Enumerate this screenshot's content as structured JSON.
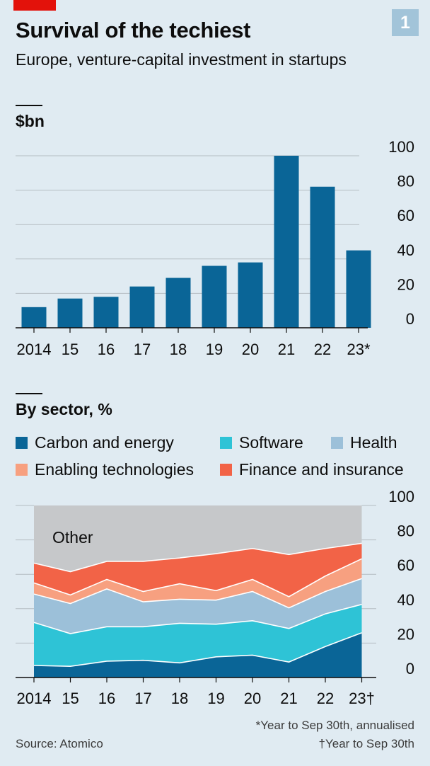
{
  "header": {
    "title": "Survival of the techiest",
    "subtitle": "Europe, venture-capital investment in startups",
    "chart_number": "1"
  },
  "colors": {
    "background": "#e0ebf2",
    "bar": "#0a6597",
    "brand_red": "#e3120b",
    "other_area": "#c6c8ca",
    "grid": "#b4bcc2"
  },
  "chart_data": [
    {
      "type": "bar",
      "ylabel": "$bn",
      "categories": [
        "2014",
        "15",
        "16",
        "17",
        "18",
        "19",
        "20",
        "21",
        "22",
        "23*"
      ],
      "values": [
        12,
        17,
        18,
        24,
        29,
        36,
        38,
        100,
        82,
        45
      ],
      "ylim": [
        0,
        100
      ],
      "yticks": [
        "0",
        "20",
        "40",
        "60",
        "80",
        "100"
      ],
      "grid": true
    },
    {
      "type": "area",
      "ylabel": "By sector, %",
      "categories": [
        "2014",
        "15",
        "16",
        "17",
        "18",
        "19",
        "20",
        "21",
        "22",
        "23†"
      ],
      "ylim": [
        0,
        100
      ],
      "yticks": [
        "0",
        "20",
        "40",
        "60",
        "80",
        "100"
      ],
      "stacked": true,
      "series": [
        {
          "name": "Carbon and energy",
          "color": "#0a6597",
          "values": [
            7,
            6.5,
            9.5,
            10,
            8.5,
            12,
            13,
            9,
            18,
            26
          ]
        },
        {
          "name": "Software",
          "color": "#2ec3d6",
          "values": [
            25,
            19,
            20,
            19.5,
            23,
            19,
            20,
            19.5,
            19,
            16.5
          ]
        },
        {
          "name": "Health",
          "color": "#9cc0d9",
          "values": [
            16.5,
            17.5,
            22,
            14.5,
            14,
            14,
            17,
            12,
            13,
            15
          ]
        },
        {
          "name": "Enabling technologies",
          "color": "#f7a080",
          "values": [
            6.5,
            5,
            5.5,
            6,
            9,
            5.5,
            7,
            6.5,
            9,
            11.5
          ]
        },
        {
          "name": "Finance and insurance",
          "color": "#f26347",
          "values": [
            11.5,
            13.5,
            10.5,
            17.5,
            15,
            21.5,
            18,
            24.5,
            16,
            9
          ]
        },
        {
          "name": "Other",
          "color": "#c6c8ca",
          "values": [
            33.5,
            38.5,
            32.5,
            32.5,
            30.5,
            28,
            25,
            28.5,
            25,
            22
          ]
        }
      ]
    }
  ],
  "legend": [
    {
      "label": "Carbon and energy",
      "color": "#0a6597"
    },
    {
      "label": "Software",
      "color": "#2ec3d6"
    },
    {
      "label": "Health",
      "color": "#9cc0d9"
    },
    {
      "label": "Enabling technologies",
      "color": "#f7a080"
    },
    {
      "label": "Finance and insurance",
      "color": "#f26347"
    }
  ],
  "annotations": {
    "other_label": "Other"
  },
  "footer": {
    "source": "Source: Atomico",
    "note1": "*Year to Sep 30th, annualised",
    "note2": "†Year to Sep 30th"
  }
}
